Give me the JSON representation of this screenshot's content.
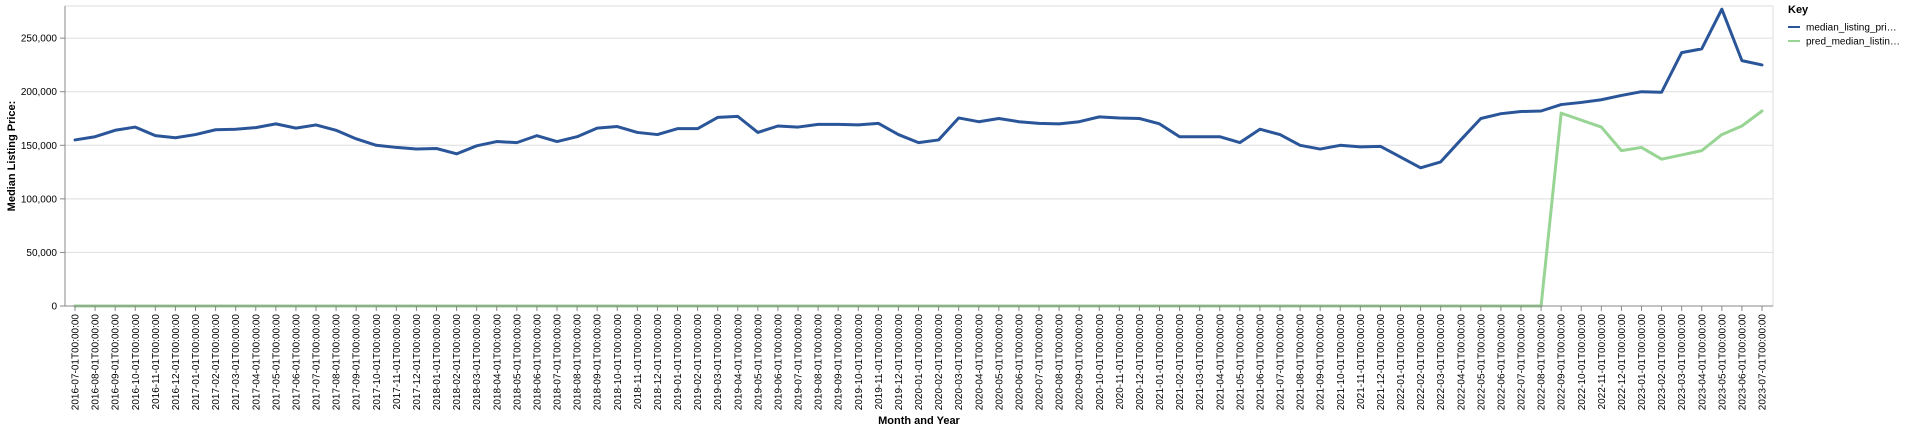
{
  "chart_data": {
    "type": "line",
    "xlabel": "Month and Year",
    "ylabel": "Median Listing Price:",
    "ylim": [
      0,
      280000
    ],
    "yticks": [
      0,
      50000,
      100000,
      150000,
      200000,
      250000
    ],
    "ytick_labels": [
      "0",
      "50,000",
      "100,000",
      "150,000",
      "200,000",
      "250,000"
    ],
    "grid": true,
    "legend": {
      "title": "Key",
      "placement": "top-right"
    },
    "x": [
      "2016-07-01T00:00:00",
      "2016-08-01T00:00:00",
      "2016-09-01T00:00:00",
      "2016-10-01T00:00:00",
      "2016-11-01T00:00:00",
      "2016-12-01T00:00:00",
      "2017-01-01T00:00:00",
      "2017-02-01T00:00:00",
      "2017-03-01T00:00:00",
      "2017-04-01T00:00:00",
      "2017-05-01T00:00:00",
      "2017-06-01T00:00:00",
      "2017-07-01T00:00:00",
      "2017-08-01T00:00:00",
      "2017-09-01T00:00:00",
      "2017-10-01T00:00:00",
      "2017-11-01T00:00:00",
      "2017-12-01T00:00:00",
      "2018-01-01T00:00:00",
      "2018-02-01T00:00:00",
      "2018-03-01T00:00:00",
      "2018-04-01T00:00:00",
      "2018-05-01T00:00:00",
      "2018-06-01T00:00:00",
      "2018-07-01T00:00:00",
      "2018-08-01T00:00:00",
      "2018-09-01T00:00:00",
      "2018-10-01T00:00:00",
      "2018-11-01T00:00:00",
      "2018-12-01T00:00:00",
      "2019-01-01T00:00:00",
      "2019-02-01T00:00:00",
      "2019-03-01T00:00:00",
      "2019-04-01T00:00:00",
      "2019-05-01T00:00:00",
      "2019-06-01T00:00:00",
      "2019-07-01T00:00:00",
      "2019-08-01T00:00:00",
      "2019-09-01T00:00:00",
      "2019-10-01T00:00:00",
      "2019-11-01T00:00:00",
      "2019-12-01T00:00:00",
      "2020-01-01T00:00:00",
      "2020-02-01T00:00:00",
      "2020-03-01T00:00:00",
      "2020-04-01T00:00:00",
      "2020-05-01T00:00:00",
      "2020-06-01T00:00:00",
      "2020-07-01T00:00:00",
      "2020-08-01T00:00:00",
      "2020-09-01T00:00:00",
      "2020-10-01T00:00:00",
      "2020-11-01T00:00:00",
      "2020-12-01T00:00:00",
      "2021-01-01T00:00:00",
      "2021-02-01T00:00:00",
      "2021-03-01T00:00:00",
      "2021-04-01T00:00:00",
      "2021-05-01T00:00:00",
      "2021-06-01T00:00:00",
      "2021-07-01T00:00:00",
      "2021-08-01T00:00:00",
      "2021-09-01T00:00:00",
      "2021-10-01T00:00:00",
      "2021-11-01T00:00:00",
      "2021-12-01T00:00:00",
      "2022-01-01T00:00:00",
      "2022-02-01T00:00:00",
      "2022-03-01T00:00:00",
      "2022-04-01T00:00:00",
      "2022-05-01T00:00:00",
      "2022-06-01T00:00:00",
      "2022-07-01T00:00:00",
      "2022-08-01T00:00:00",
      "2022-09-01T00:00:00",
      "2022-10-01T00:00:00",
      "2022-11-01T00:00:00",
      "2022-12-01T00:00:00",
      "2023-01-01T00:00:00",
      "2023-02-01T00:00:00",
      "2023-03-01T00:00:00",
      "2023-04-01T00:00:00",
      "2023-05-01T00:00:00",
      "2023-06-01T00:00:00",
      "2023-07-01T00:00:00"
    ],
    "series": [
      {
        "name": "median_listing_pri…",
        "color": "#2a5599",
        "values": [
          155000,
          158000,
          164000,
          167000,
          159000,
          157000,
          160000,
          164500,
          165000,
          166500,
          170000,
          166000,
          169000,
          164000,
          156000,
          150000,
          148000,
          146500,
          147000,
          142000,
          149500,
          153500,
          152500,
          159000,
          153500,
          158000,
          166000,
          167500,
          162000,
          160000,
          165500,
          165500,
          176000,
          177000,
          162000,
          168000,
          167000,
          169500,
          169500,
          169000,
          170500,
          160000,
          152500,
          155000,
          175500,
          172000,
          175000,
          172000,
          170500,
          170000,
          172000,
          176500,
          175500,
          175000,
          170000,
          158000,
          158000,
          158000,
          152500,
          165000,
          160000,
          150000,
          146500,
          150000,
          148500,
          149000,
          139000,
          129000,
          134500,
          155000,
          175000,
          179500,
          181500,
          182000,
          188000,
          190000,
          192500,
          196500,
          200000,
          199500,
          236500,
          240000,
          277000,
          229000,
          225000
        ]
      },
      {
        "name": "pred_median_listin…",
        "color": "#98d594",
        "values": [
          0,
          0,
          0,
          0,
          0,
          0,
          0,
          0,
          0,
          0,
          0,
          0,
          0,
          0,
          0,
          0,
          0,
          0,
          0,
          0,
          0,
          0,
          0,
          0,
          0,
          0,
          0,
          0,
          0,
          0,
          0,
          0,
          0,
          0,
          0,
          0,
          0,
          0,
          0,
          0,
          0,
          0,
          0,
          0,
          0,
          0,
          0,
          0,
          0,
          0,
          0,
          0,
          0,
          0,
          0,
          0,
          0,
          0,
          0,
          0,
          0,
          0,
          0,
          0,
          0,
          0,
          0,
          0,
          0,
          0,
          0,
          0,
          0,
          0,
          180000,
          173500,
          167000,
          145000,
          148000,
          137000,
          141000,
          145000,
          160000,
          168000,
          182000
        ]
      }
    ]
  }
}
